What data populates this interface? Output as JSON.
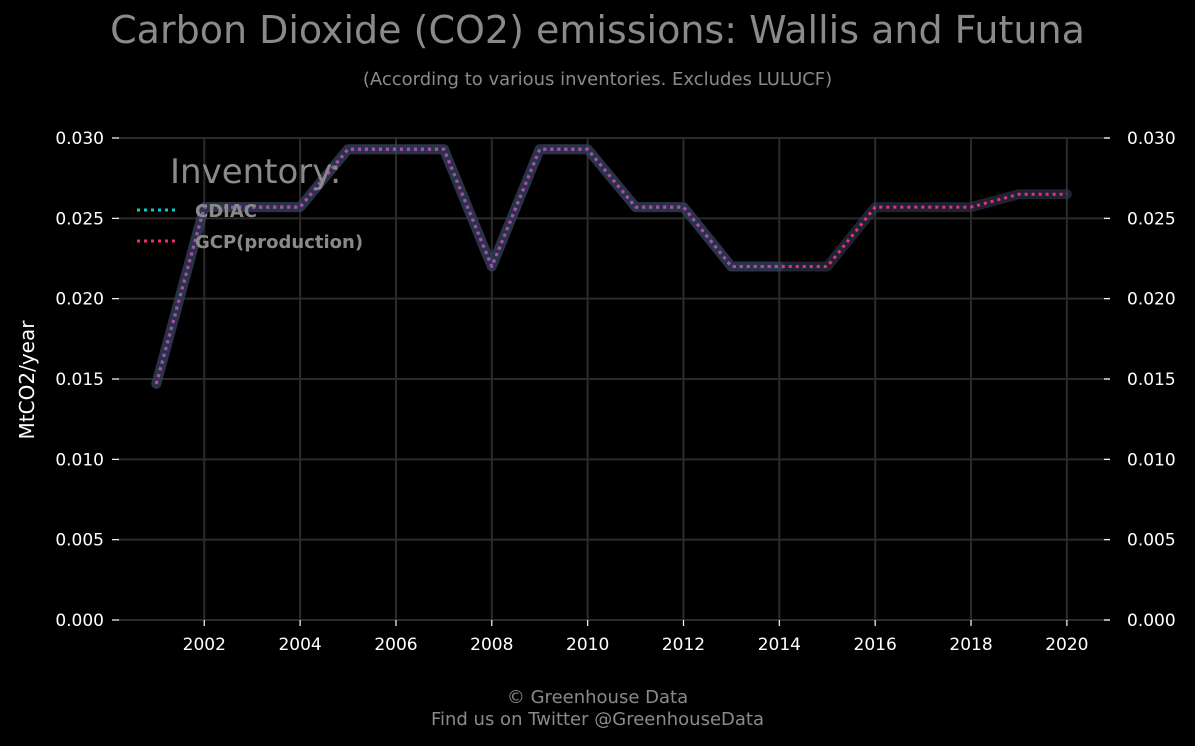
{
  "title": "Carbon Dioxide (CO2) emissions: Wallis and Futuna",
  "subtitle": "(According to various inventories. Excludes LULUCF)",
  "footer": {
    "credit": "© Greenhouse Data",
    "twitter": "Find us on Twitter @GreenhouseData"
  },
  "colors": {
    "background": "#000000",
    "grid": "#2b2b2b",
    "text": "#ffffff",
    "muted": "#8a8a8a",
    "cdiac": "#14c8c8",
    "gcp": "#e8307a"
  },
  "chart_data": {
    "type": "line",
    "ylabel": "MtCO2/year",
    "xlabel": "",
    "ylim": [
      0,
      0.03
    ],
    "xlim": [
      2000.2,
      2020.9
    ],
    "yticks": [
      "0.000",
      "0.005",
      "0.010",
      "0.015",
      "0.020",
      "0.025",
      "0.030"
    ],
    "ytick_values": [
      0,
      0.005,
      0.01,
      0.015,
      0.02,
      0.025,
      0.03
    ],
    "xticks": [
      2002,
      2004,
      2006,
      2008,
      2010,
      2012,
      2014,
      2016,
      2018,
      2020
    ],
    "grid": true,
    "legend": {
      "title": "Inventory:",
      "position": "top-left"
    },
    "series": [
      {
        "name": "CDIAC",
        "color": "#14c8c8",
        "x": [
          2001,
          2002,
          2003,
          2004,
          2005,
          2006,
          2007,
          2008,
          2009,
          2010,
          2011,
          2012,
          2013,
          2014
        ],
        "y": [
          0.0147,
          0.0257,
          0.0257,
          0.0257,
          0.0293,
          0.0293,
          0.0293,
          0.022,
          0.0293,
          0.0293,
          0.0257,
          0.0257,
          0.022,
          0.022
        ]
      },
      {
        "name": "GCP(production)",
        "color": "#e8307a",
        "x": [
          2001,
          2002,
          2003,
          2004,
          2005,
          2006,
          2007,
          2008,
          2009,
          2010,
          2011,
          2012,
          2013,
          2014,
          2015,
          2016,
          2017,
          2018,
          2019,
          2020
        ],
        "y": [
          0.0147,
          0.0257,
          0.0257,
          0.0257,
          0.0293,
          0.0293,
          0.0293,
          0.022,
          0.0293,
          0.0293,
          0.0257,
          0.0257,
          0.022,
          0.022,
          0.022,
          0.0257,
          0.0257,
          0.0257,
          0.0265,
          0.0265
        ]
      }
    ]
  }
}
